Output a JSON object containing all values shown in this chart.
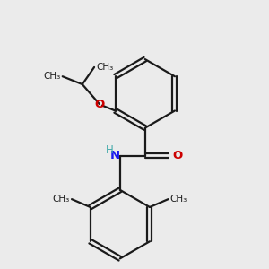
{
  "background_color": "#ebebeb",
  "bond_color": "#1a1a1a",
  "o_color": "#cc0000",
  "n_color": "#1a1aee",
  "h_color": "#44aaaa",
  "figsize": [
    3.0,
    3.0
  ],
  "dpi": 100,
  "xlim": [
    0,
    10
  ],
  "ylim": [
    0,
    10
  ]
}
